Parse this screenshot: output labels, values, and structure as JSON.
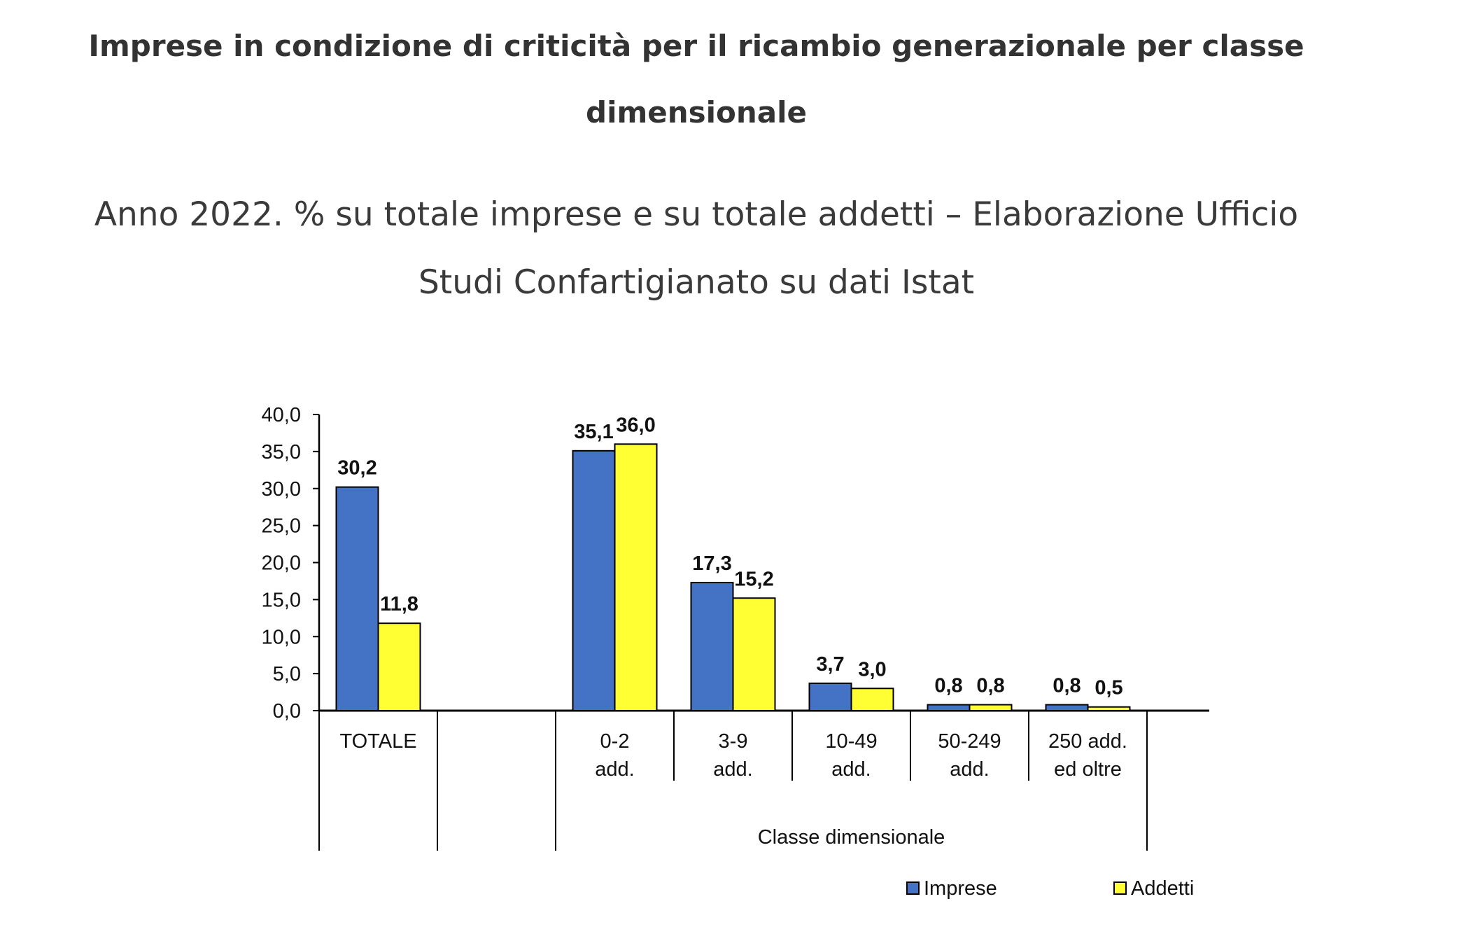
{
  "header": {
    "title": "Imprese in condizione di criticità per il ricambio generazionale per classe dimensionale",
    "subtitle": "Anno 2022. % su totale imprese e su totale addetti – Elaborazione Ufficio Studi Confartigianato su dati Istat"
  },
  "chart_data": {
    "type": "bar",
    "categories": [
      "TOTALE",
      "0-2 add.",
      "3-9 add.",
      "10-49 add.",
      "50-249 add.",
      "250 add. ed oltre"
    ],
    "category_lines": [
      [
        "TOTALE"
      ],
      [
        "0-2",
        "add."
      ],
      [
        "3-9",
        "add."
      ],
      [
        "10-49",
        "add."
      ],
      [
        "50-249",
        "add."
      ],
      [
        "250 add.",
        "ed oltre"
      ]
    ],
    "series": [
      {
        "name": "Imprese",
        "values": [
          30.2,
          35.1,
          17.3,
          3.7,
          0.8,
          0.8
        ],
        "labels": [
          "30,2",
          "35,1",
          "17,3",
          "3,7",
          "0,8",
          "0,8"
        ],
        "color": "#4472C4"
      },
      {
        "name": "Addetti",
        "values": [
          11.8,
          36.0,
          15.2,
          3.0,
          0.8,
          0.5
        ],
        "labels": [
          "11,8",
          "36,0",
          "15,2",
          "3,0",
          "0,8",
          "0,5"
        ],
        "color": "#FFFF33"
      }
    ],
    "ylim": [
      0,
      40
    ],
    "yticks": [
      "0,0",
      "5,0",
      "10,0",
      "15,0",
      "20,0",
      "25,0",
      "30,0",
      "35,0",
      "40,0"
    ],
    "group_label": "Classe dimensionale",
    "legend_position": "bottom-right",
    "grid": false
  }
}
